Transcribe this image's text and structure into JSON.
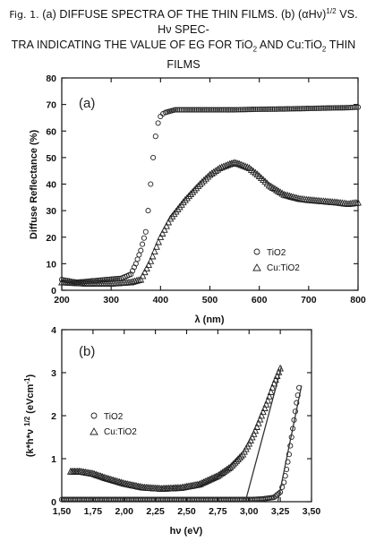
{
  "caption": {
    "line1_lead": "Fig. 1.",
    "line1_rest": " (a) DIFFUSE SPECTRA OF THE THIN FILMS. (b) (αHν)",
    "line1_sup": "1/2",
    "line1_end": " VS. Hν SPEC-",
    "line2_a": "TRA INDICATING THE VALUE OF EG FOR TiO",
    "line2_sub1": "2",
    "line2_b": " AND Cu:TiO",
    "line2_sub2": "2",
    "line2_c": " THIN FILMS"
  },
  "chart_data": [
    {
      "type": "scatter",
      "panel_label": "(a)",
      "xlabel": "λ (nm)",
      "ylabel": "Diffuse Reflectance (%)",
      "xlim": [
        200,
        800
      ],
      "ylim": [
        0,
        80
      ],
      "x_ticks": [
        200,
        300,
        400,
        500,
        600,
        700,
        800
      ],
      "y_ticks": [
        0,
        10,
        20,
        30,
        40,
        50,
        60,
        70,
        80
      ],
      "legend_placement": "bottom-right",
      "series": [
        {
          "name": "TiO2",
          "marker": "circle",
          "x": [
            200,
            230,
            260,
            290,
            320,
            340,
            350,
            360,
            370,
            375,
            380,
            385,
            390,
            395,
            400,
            405,
            410,
            420,
            430,
            450,
            500,
            550,
            600,
            650,
            700,
            750,
            780,
            800
          ],
          "y": [
            4,
            3,
            3.5,
            4,
            4.5,
            6,
            10,
            15,
            22,
            30,
            40,
            50,
            58,
            63,
            65.5,
            66.5,
            67,
            67.5,
            68,
            68,
            68,
            68,
            68.2,
            68.3,
            68.5,
            68.7,
            68.8,
            69
          ]
        },
        {
          "name": "Cu:TiO2",
          "marker": "triangle",
          "x": [
            200,
            250,
            300,
            340,
            360,
            380,
            400,
            420,
            450,
            480,
            500,
            520,
            540,
            550,
            560,
            580,
            600,
            620,
            650,
            680,
            700,
            730,
            760,
            780,
            800
          ],
          "y": [
            3,
            2.5,
            2.5,
            3,
            4,
            11,
            20,
            27,
            34,
            40,
            43.5,
            46,
            47.5,
            48,
            47.5,
            46,
            43,
            39.5,
            36,
            34.5,
            34,
            33.5,
            33,
            32.5,
            33
          ]
        }
      ]
    },
    {
      "type": "scatter",
      "panel_label": "(b)",
      "xlabel": "hν (eV)",
      "ylabel": "(k*h*ν )^1/2 (eVcm⁻¹)",
      "ylabel_main": "(k*h*ν ",
      "ylabel_sup": "1/2",
      "ylabel_unit": " (eVcm",
      "ylabel_unit_sup": "-1",
      "ylabel_close": ")",
      "xlim": [
        1.5,
        3.5
      ],
      "ylim": [
        0,
        4
      ],
      "x_ticks": [
        "1,50",
        "1,75",
        "2,00",
        "2,25",
        "2,50",
        "2,75",
        "3,00",
        "3,25",
        "3,50"
      ],
      "y_ticks": [
        0,
        1,
        2,
        3,
        4
      ],
      "legend_placement": "middle-left",
      "series": [
        {
          "name": "TiO2",
          "marker": "circle",
          "x": [
            1.5,
            1.75,
            2.0,
            2.5,
            3.0,
            3.1,
            3.2,
            3.25,
            3.28,
            3.3,
            3.32,
            3.34,
            3.36,
            3.38,
            3.4
          ],
          "y": [
            0.05,
            0.05,
            0.05,
            0.05,
            0.05,
            0.06,
            0.1,
            0.22,
            0.45,
            0.75,
            1.1,
            1.5,
            1.9,
            2.3,
            2.65
          ]
        },
        {
          "name": "Cu:TiO2",
          "marker": "triangle",
          "x": [
            1.57,
            1.65,
            1.75,
            1.85,
            2.0,
            2.15,
            2.3,
            2.45,
            2.6,
            2.75,
            2.85,
            2.95,
            3.0,
            3.05,
            3.1,
            3.15,
            3.2,
            3.25
          ],
          "y": [
            0.7,
            0.7,
            0.65,
            0.55,
            0.42,
            0.33,
            0.3,
            0.32,
            0.4,
            0.6,
            0.8,
            1.1,
            1.35,
            1.65,
            2.0,
            2.35,
            2.75,
            3.1
          ]
        }
      ],
      "fit_lines": [
        {
          "series": "TiO2",
          "x": [
            3.23,
            3.42
          ],
          "y": [
            0,
            2.7
          ]
        },
        {
          "series": "Cu:TiO2",
          "x": [
            2.97,
            3.26
          ],
          "y": [
            0,
            3.15
          ]
        }
      ]
    }
  ]
}
